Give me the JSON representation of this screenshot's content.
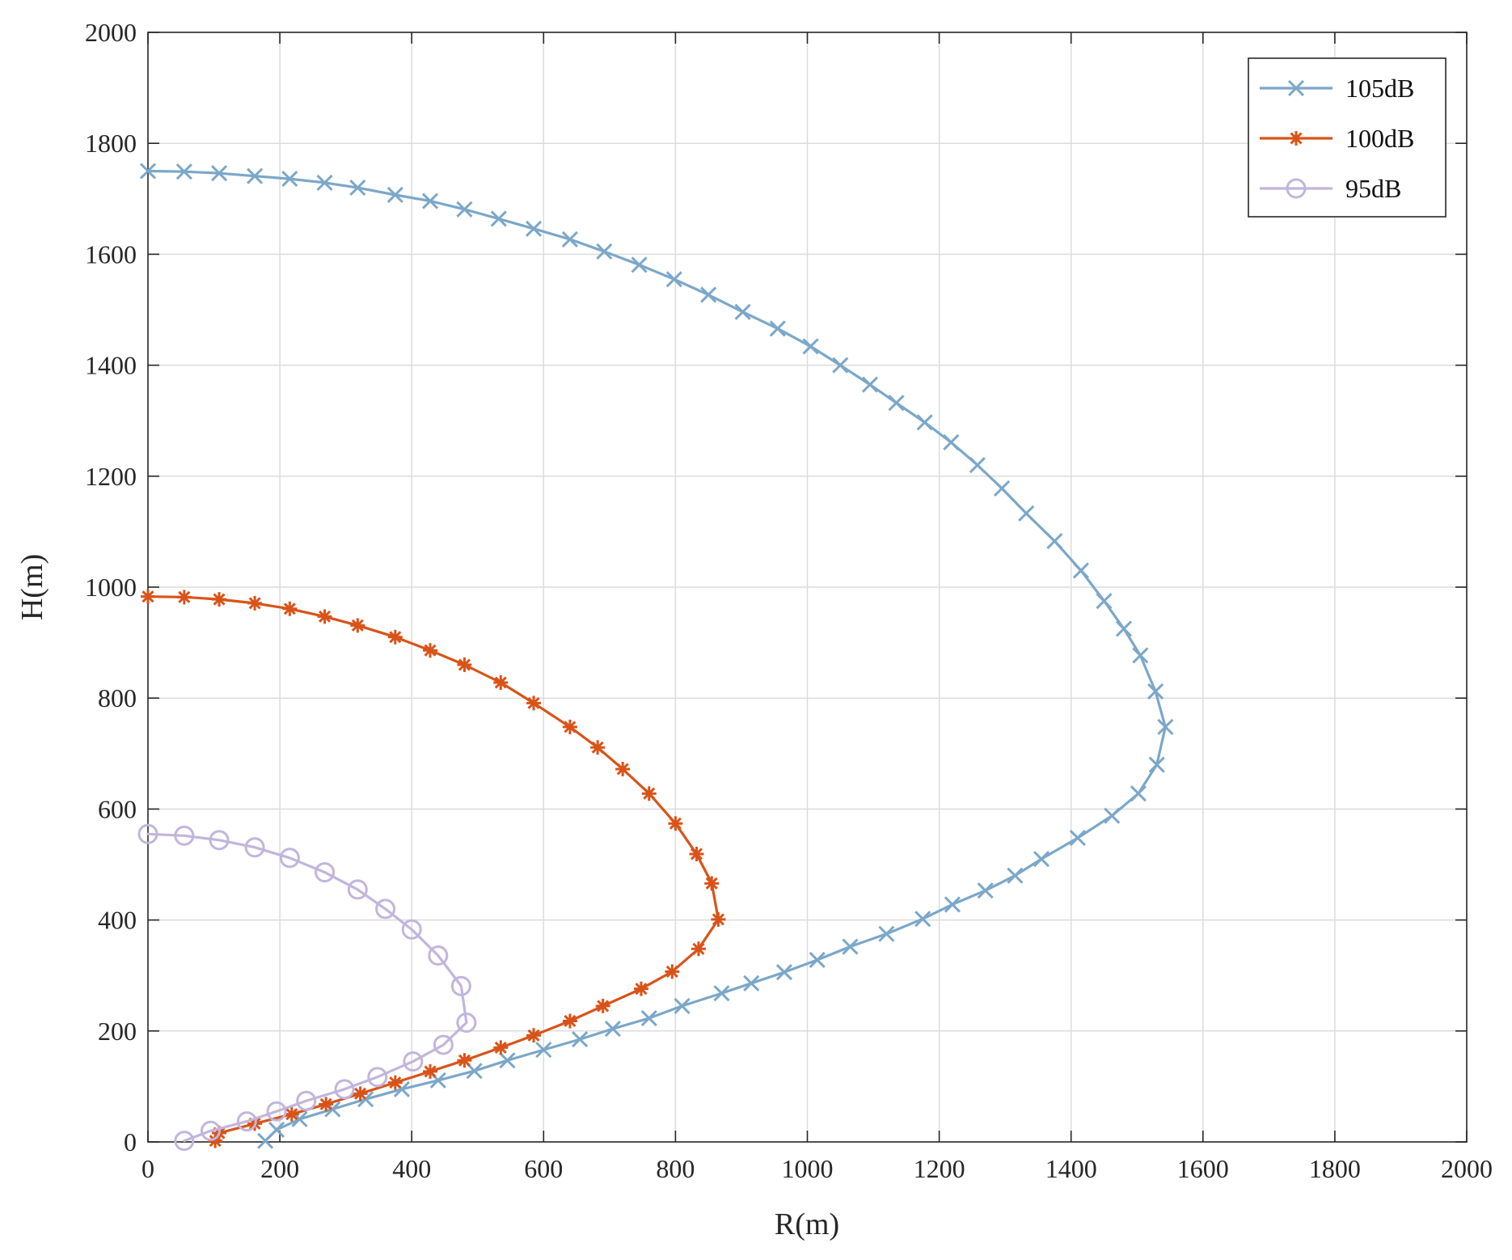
{
  "chart_data": {
    "type": "line",
    "title": "",
    "xlabel": "R(m)",
    "ylabel": "H(m)",
    "xlim": [
      0,
      2000
    ],
    "ylim": [
      0,
      2000
    ],
    "xticks": [
      "0",
      "200",
      "400",
      "600",
      "800",
      "1000",
      "1200",
      "1400",
      "1600",
      "1800",
      "2000"
    ],
    "yticks": [
      "0",
      "200",
      "400",
      "600",
      "800",
      "1000",
      "1200",
      "1400",
      "1600",
      "1800",
      "2000"
    ],
    "grid": true,
    "legend_position": "top-right",
    "series": [
      {
        "name": "105dB",
        "color": "#7ba7c9",
        "marker": "x",
        "points": [
          [
            0,
            1750
          ],
          [
            55,
            1749
          ],
          [
            108,
            1746
          ],
          [
            162,
            1741
          ],
          [
            215,
            1736
          ],
          [
            268,
            1729
          ],
          [
            318,
            1720
          ],
          [
            375,
            1707
          ],
          [
            428,
            1696
          ],
          [
            480,
            1681
          ],
          [
            532,
            1664
          ],
          [
            585,
            1646
          ],
          [
            640,
            1627
          ],
          [
            692,
            1605
          ],
          [
            745,
            1581
          ],
          [
            798,
            1555
          ],
          [
            850,
            1527
          ],
          [
            902,
            1496
          ],
          [
            955,
            1466
          ],
          [
            1005,
            1434
          ],
          [
            1050,
            1400
          ],
          [
            1095,
            1365
          ],
          [
            1135,
            1332
          ],
          [
            1178,
            1297
          ],
          [
            1218,
            1261
          ],
          [
            1258,
            1220
          ],
          [
            1295,
            1178
          ],
          [
            1332,
            1133
          ],
          [
            1375,
            1083
          ],
          [
            1415,
            1030
          ],
          [
            1450,
            975
          ],
          [
            1480,
            925
          ],
          [
            1505,
            877
          ],
          [
            1528,
            812
          ],
          [
            1543,
            748
          ],
          [
            1530,
            680
          ],
          [
            1502,
            628
          ],
          [
            1462,
            588
          ],
          [
            1410,
            548
          ],
          [
            1355,
            510
          ],
          [
            1315,
            480
          ],
          [
            1270,
            453
          ],
          [
            1220,
            428
          ],
          [
            1175,
            402
          ],
          [
            1120,
            375
          ],
          [
            1065,
            352
          ],
          [
            1015,
            328
          ],
          [
            965,
            306
          ],
          [
            915,
            286
          ],
          [
            870,
            268
          ],
          [
            810,
            245
          ],
          [
            760,
            223
          ],
          [
            705,
            204
          ],
          [
            655,
            185
          ],
          [
            600,
            166
          ],
          [
            545,
            147
          ],
          [
            495,
            128
          ],
          [
            440,
            111
          ],
          [
            385,
            95
          ],
          [
            330,
            77
          ],
          [
            280,
            59
          ],
          [
            230,
            41
          ],
          [
            195,
            22
          ],
          [
            178,
            2
          ]
        ]
      },
      {
        "name": "100dB",
        "color": "#d95319",
        "marker": "*",
        "points": [
          [
            0,
            983
          ],
          [
            55,
            982
          ],
          [
            108,
            978
          ],
          [
            162,
            971
          ],
          [
            215,
            961
          ],
          [
            268,
            947
          ],
          [
            318,
            931
          ],
          [
            375,
            910
          ],
          [
            428,
            886
          ],
          [
            480,
            860
          ],
          [
            535,
            828
          ],
          [
            585,
            791
          ],
          [
            640,
            748
          ],
          [
            682,
            711
          ],
          [
            720,
            672
          ],
          [
            760,
            628
          ],
          [
            800,
            574
          ],
          [
            832,
            519
          ],
          [
            855,
            466
          ],
          [
            865,
            401
          ],
          [
            835,
            348
          ],
          [
            795,
            307
          ],
          [
            748,
            276
          ],
          [
            690,
            245
          ],
          [
            640,
            218
          ],
          [
            585,
            192
          ],
          [
            535,
            170
          ],
          [
            480,
            147
          ],
          [
            428,
            127
          ],
          [
            375,
            107
          ],
          [
            322,
            87
          ],
          [
            270,
            68
          ],
          [
            218,
            50
          ],
          [
            162,
            33
          ],
          [
            108,
            16
          ],
          [
            102,
            2
          ]
        ]
      },
      {
        "name": "95dB",
        "color": "#c2b5dc",
        "marker": "o",
        "points": [
          [
            0,
            555
          ],
          [
            55,
            552
          ],
          [
            108,
            544
          ],
          [
            162,
            531
          ],
          [
            215,
            512
          ],
          [
            268,
            486
          ],
          [
            318,
            455
          ],
          [
            360,
            420
          ],
          [
            400,
            383
          ],
          [
            440,
            336
          ],
          [
            475,
            281
          ],
          [
            483,
            215
          ],
          [
            448,
            175
          ],
          [
            402,
            145
          ],
          [
            348,
            117
          ],
          [
            298,
            95
          ],
          [
            240,
            74
          ],
          [
            195,
            55
          ],
          [
            150,
            37
          ],
          [
            95,
            20
          ],
          [
            55,
            2
          ]
        ]
      }
    ]
  }
}
